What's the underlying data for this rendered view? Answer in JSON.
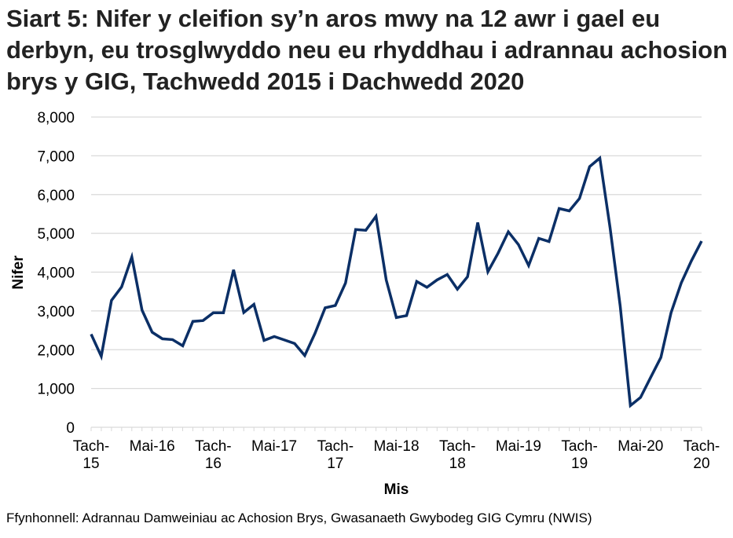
{
  "chart_data": {
    "type": "line",
    "title": "Siart 5: Nifer y cleifion sy’n aros mwy na 12 awr i gael eu derbyn, eu trosglwyddo neu eu rhyddhau i adrannau achosion brys y GIG, Tachwedd 2015 i Dachwedd 2020",
    "xlabel": "Mis",
    "ylabel": "Nifer",
    "ylim": [
      0,
      8000
    ],
    "yticks": [
      "0",
      "1,000",
      "2,000",
      "3,000",
      "4,000",
      "5,000",
      "6,000",
      "7,000",
      "8,000"
    ],
    "xtick_labels": [
      [
        "Tach-",
        "15"
      ],
      [
        "Mai-16"
      ],
      [
        "Tach-",
        "16"
      ],
      [
        "Mai-17"
      ],
      [
        "Tach-",
        "17"
      ],
      [
        "Mai-18"
      ],
      [
        "Tach-",
        "18"
      ],
      [
        "Mai-19"
      ],
      [
        "Tach-",
        "19"
      ],
      [
        "Mai-20"
      ],
      [
        "Tach-",
        "20"
      ]
    ],
    "x": [
      "2015-11",
      "2015-12",
      "2016-01",
      "2016-02",
      "2016-03",
      "2016-04",
      "2016-05",
      "2016-06",
      "2016-07",
      "2016-08",
      "2016-09",
      "2016-10",
      "2016-11",
      "2016-12",
      "2017-01",
      "2017-02",
      "2017-03",
      "2017-04",
      "2017-05",
      "2017-06",
      "2017-07",
      "2017-08",
      "2017-09",
      "2017-10",
      "2017-11",
      "2017-12",
      "2018-01",
      "2018-02",
      "2018-03",
      "2018-04",
      "2018-05",
      "2018-06",
      "2018-07",
      "2018-08",
      "2018-09",
      "2018-10",
      "2018-11",
      "2018-12",
      "2019-01",
      "2019-02",
      "2019-03",
      "2019-04",
      "2019-05",
      "2019-06",
      "2019-07",
      "2019-08",
      "2019-09",
      "2019-10",
      "2019-11",
      "2019-12",
      "2020-01",
      "2020-02",
      "2020-03",
      "2020-04",
      "2020-05",
      "2020-06",
      "2020-07",
      "2020-08",
      "2020-09",
      "2020-10",
      "2020-11"
    ],
    "values": [
      2400,
      1830,
      3270,
      3620,
      4390,
      3020,
      2450,
      2280,
      2260,
      2100,
      2730,
      2750,
      2950,
      2950,
      4060,
      2960,
      3170,
      2240,
      2340,
      2250,
      2160,
      1850,
      2420,
      3080,
      3140,
      3720,
      5100,
      5080,
      5440,
      3800,
      2830,
      2880,
      3760,
      3610,
      3800,
      3940,
      3560,
      3880,
      5280,
      4010,
      4490,
      5040,
      4710,
      4170,
      4870,
      4790,
      5640,
      5580,
      5900,
      6720,
      6940,
      5150,
      3130,
      560,
      770,
      1290,
      1800,
      2950,
      3720,
      4290,
      4800
    ],
    "grid": true,
    "line_color": "#0b2f66",
    "grid_color": "#d9d9d9"
  },
  "source": "Ffynhonnell: Adrannau Damweiniau ac Achosion Brys, Gwasanaeth Gwybodeg GIG Cymru (NWIS)"
}
